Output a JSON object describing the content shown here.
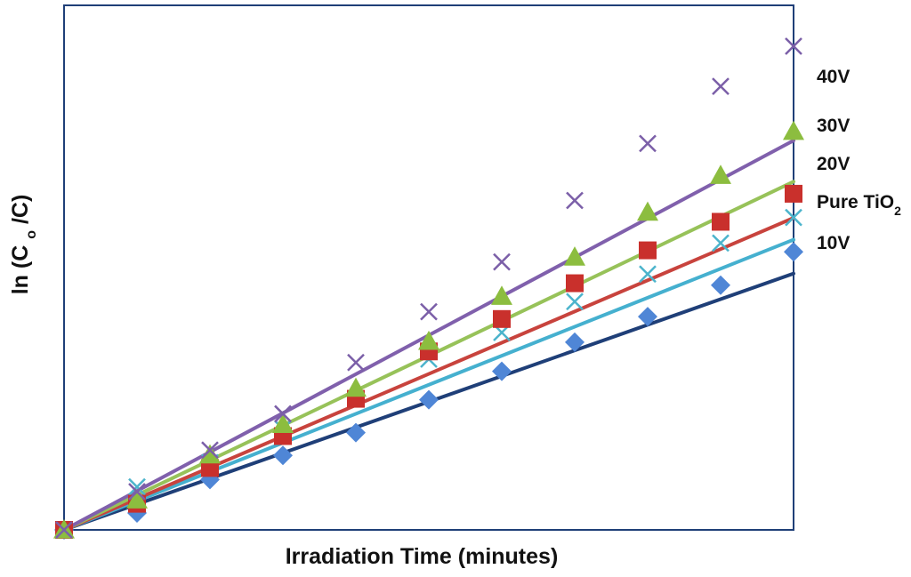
{
  "chart_data": {
    "type": "scatter",
    "title": "",
    "xlabel": "Irradiation Time (minutes)",
    "ylabel": {
      "prefix": "ln (C",
      "subscript": "o",
      "suffix": "/C)"
    },
    "xlim": [
      0,
      10
    ],
    "ylim": [
      0,
      1.0
    ],
    "x_ticks_visible": false,
    "y_ticks_visible": false,
    "grid": false,
    "x": [
      0,
      1,
      2,
      3,
      4,
      5,
      6,
      7,
      8,
      9,
      10
    ],
    "series": [
      {
        "name": "10V",
        "label": {
          "main": "10V",
          "subscript": ""
        },
        "marker": "diamond",
        "color": "#4f86d6",
        "line_color": "#1f3f78",
        "values": [
          0.0,
          0.035,
          0.104,
          0.154,
          0.201,
          0.269,
          0.328,
          0.388,
          0.441,
          0.506,
          0.575
        ],
        "fit_slope": 0.053
      },
      {
        "name": "Pure TiO2",
        "label": {
          "main": "Pure TiO",
          "subscript": "2"
        },
        "marker": "x",
        "color": "#4cb4cc",
        "line_color": "#45b0cf",
        "values": [
          0.0,
          0.089,
          0.139,
          0.209,
          0.271,
          0.353,
          0.408,
          0.472,
          0.529,
          0.593,
          0.646
        ],
        "fit_slope": 0.06
      },
      {
        "name": "20V",
        "label": {
          "main": "20V",
          "subscript": ""
        },
        "marker": "square",
        "color": "#c9302c",
        "line_color": "#c8433d",
        "values": [
          0.0,
          0.054,
          0.128,
          0.194,
          0.271,
          0.369,
          0.436,
          0.51,
          0.578,
          0.637,
          0.695
        ],
        "fit_slope": 0.0645
      },
      {
        "name": "30V",
        "label": {
          "main": "30V",
          "subscript": ""
        },
        "marker": "triangle",
        "color": "#8cbd3f",
        "line_color": "#97c259",
        "values": [
          0.0,
          0.062,
          0.155,
          0.218,
          0.293,
          0.39,
          0.483,
          0.564,
          0.657,
          0.733,
          0.824
        ],
        "fit_slope": 0.072
      },
      {
        "name": "40V",
        "label": {
          "main": "40V",
          "subscript": ""
        },
        "marker": "x",
        "color": "#7b5fa8",
        "line_color": "#8060ac",
        "values": [
          0.0,
          0.079,
          0.165,
          0.24,
          0.346,
          0.451,
          0.554,
          0.681,
          0.799,
          0.917,
          1.0
        ],
        "fit_slope": 0.0805
      }
    ]
  }
}
